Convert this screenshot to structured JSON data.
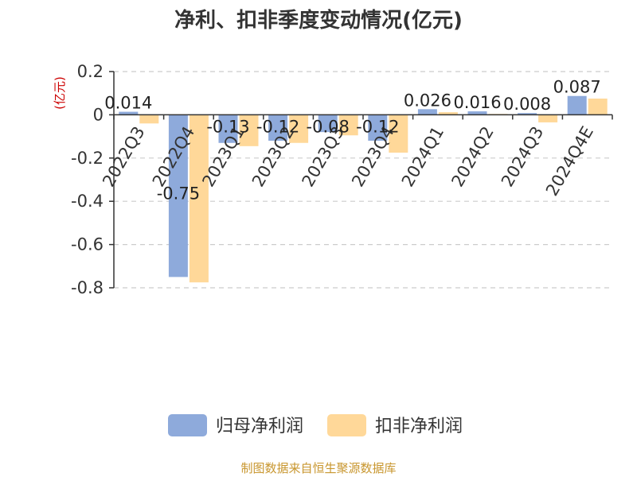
{
  "chart_data": {
    "type": "bar",
    "title": "净利、扣非季度变动情况(亿元)",
    "unit_label": "(亿元)",
    "categories": [
      "2022Q3",
      "2022Q4",
      "2023Q1",
      "2023Q2",
      "2023Q3",
      "2023Q4",
      "2024Q1",
      "2024Q2",
      "2024Q3",
      "2024Q4E"
    ],
    "series": [
      {
        "name": "归母净利润",
        "color": "#8eaadb",
        "values": [
          0.014,
          -0.75,
          -0.13,
          -0.12,
          -0.08,
          -0.12,
          0.026,
          0.016,
          0.008,
          0.087
        ],
        "labels": [
          "0.014",
          "-0.75",
          "-0.13",
          "-0.12",
          "-0.08",
          "-0.12",
          "0.026",
          "0.016",
          "0.008",
          "0.087"
        ]
      },
      {
        "name": "扣非净利润",
        "color": "#ffd899",
        "values": [
          -0.04,
          -0.775,
          -0.145,
          -0.13,
          -0.095,
          -0.175,
          0.012,
          0.004,
          -0.035,
          0.075
        ]
      }
    ],
    "ylim": [
      -0.8,
      0.2
    ],
    "yticks": [
      0.2,
      0,
      -0.2,
      -0.4,
      -0.6,
      -0.8
    ],
    "ytick_labels": [
      "0.2",
      "0",
      "-0.2",
      "-0.4",
      "-0.6",
      "-0.8"
    ],
    "grid": true,
    "legend_position": "bottom"
  },
  "footer": {
    "source": "制图数据来自恒生聚源数据库",
    "source_color": "#c8962e"
  },
  "colors": {
    "unit_label": "#cc0000",
    "grid": "#cccccc",
    "axis": "#333333"
  }
}
